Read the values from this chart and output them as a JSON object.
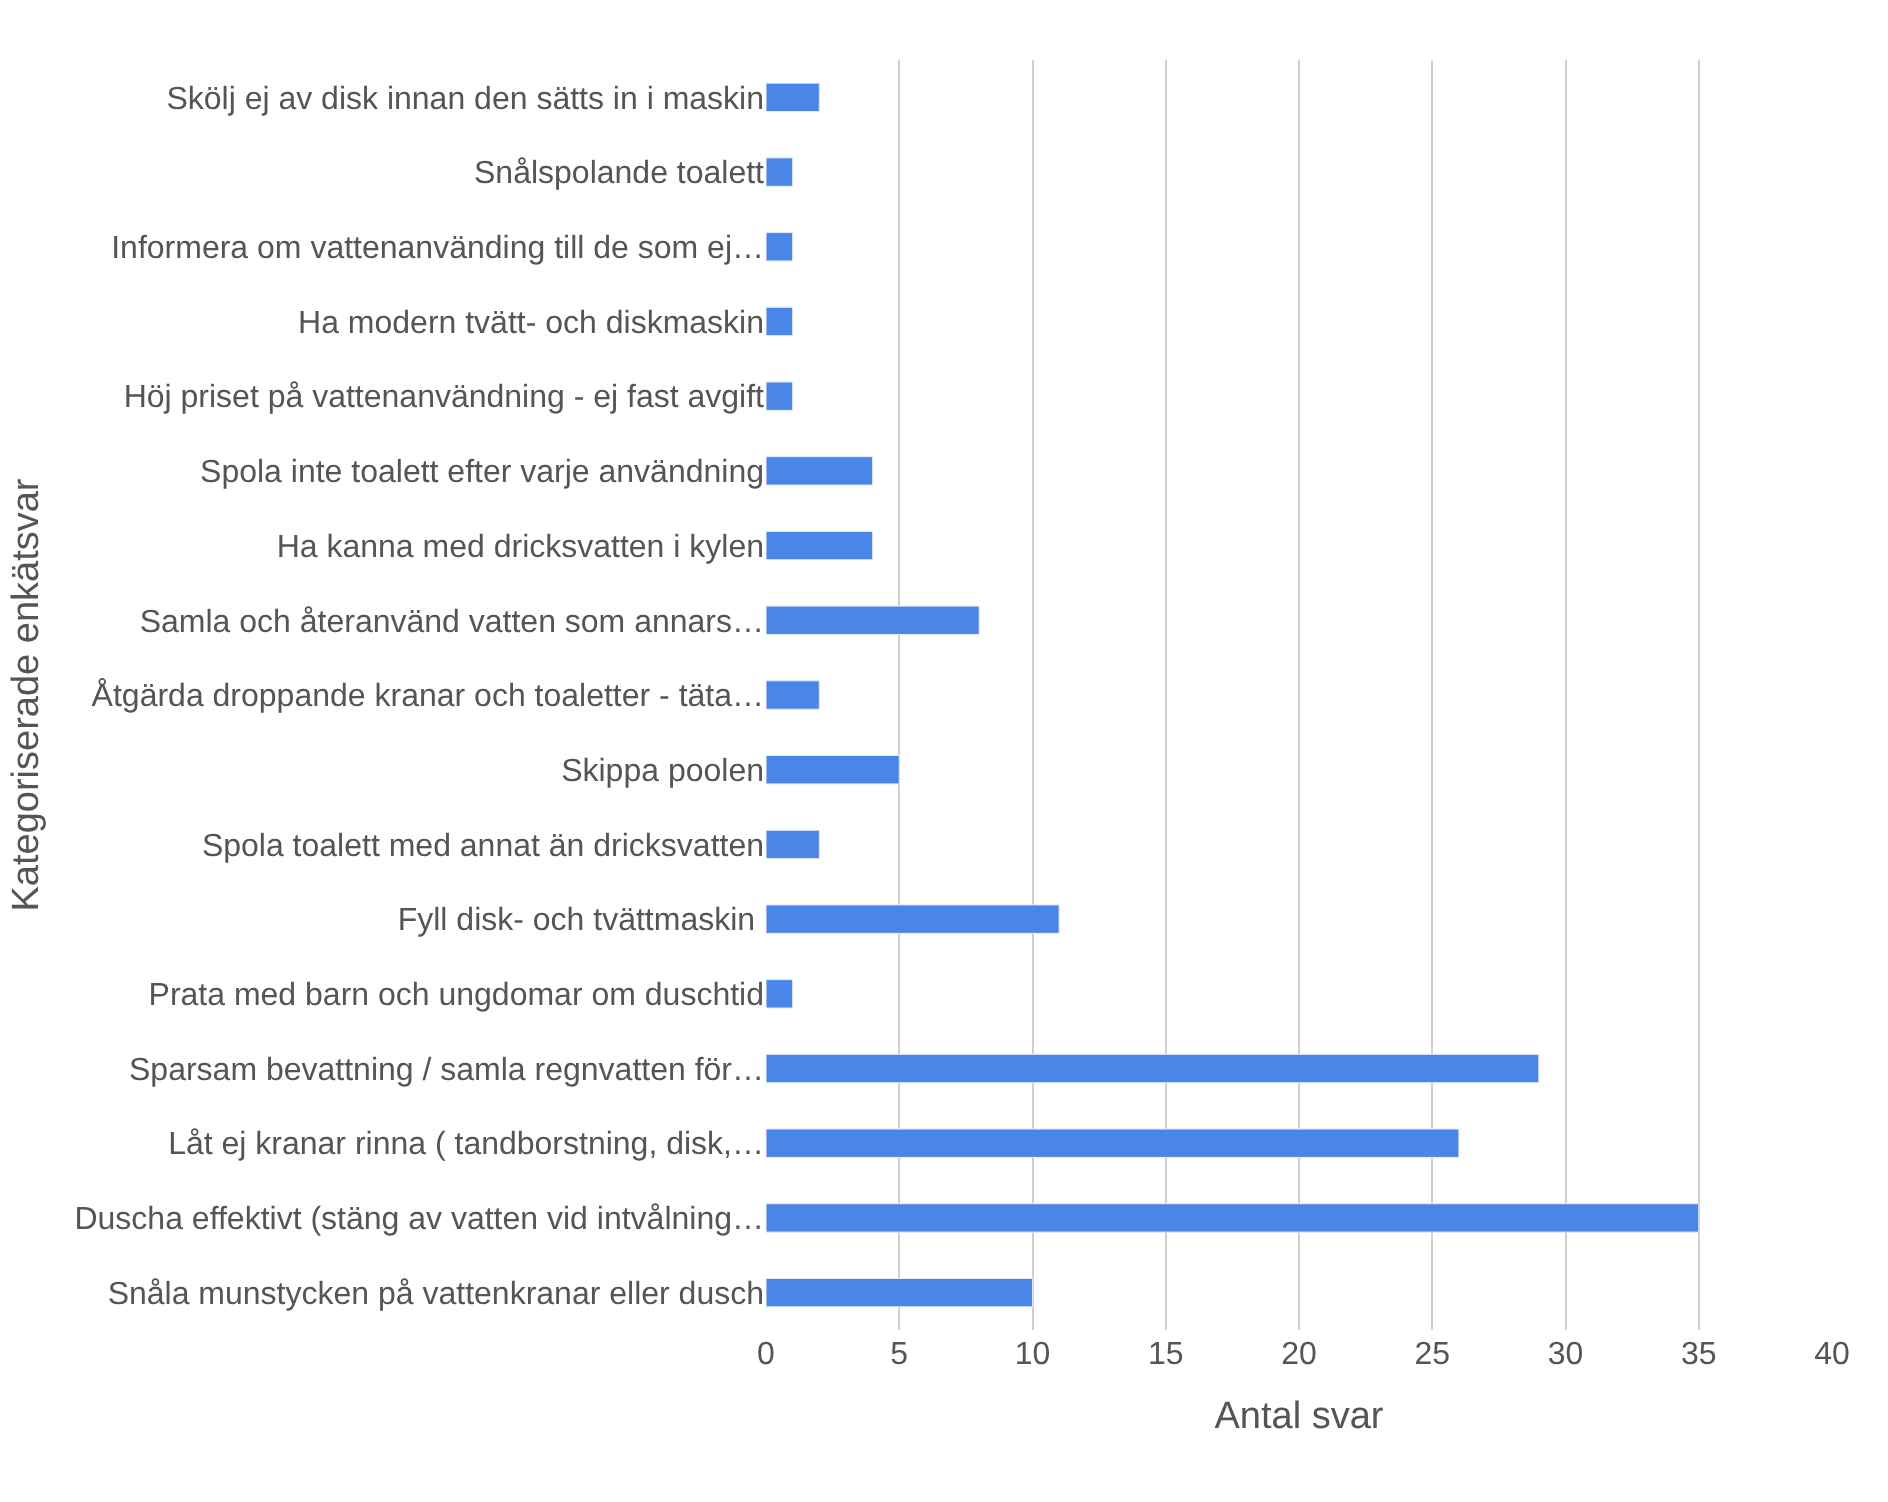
{
  "chart_data": {
    "type": "bar",
    "orientation": "horizontal",
    "xlabel": "Antal svar",
    "ylabel": "Kategoriserade enkätsvar",
    "categories": [
      "Skölj ej av disk innan den sätts in i maskin",
      "Snålspolande toalett",
      "Informera om vattenanvänding till de som ej…",
      "Ha modern tvätt- och diskmaskin",
      "Höj priset på vattenanvändning - ej fast avgift",
      "Spola inte toalett efter varje användning",
      "Ha kanna med dricksvatten i kylen",
      "Samla och återanvänd vatten som annars…",
      "Åtgärda droppande kranar och toaletter - täta…",
      "Skippa poolen",
      "Spola toalett med annat än dricksvatten",
      "Fyll disk- och tvättmaskin ",
      "Prata med barn och ungdomar om duschtid",
      "Sparsam bevattning / samla regnvatten för…",
      "Låt ej kranar rinna ( tandborstning, disk,…",
      "Duscha effektivt (stäng av vatten vid intvålning…",
      "Snåla munstycken på vattenkranar eller dusch"
    ],
    "values": [
      2,
      1,
      1,
      1,
      1,
      4,
      4,
      8,
      2,
      5,
      2,
      11,
      1,
      29,
      26,
      35,
      10
    ],
    "color": "#4a86e8",
    "xlim": [
      0,
      40
    ],
    "xticks": [
      0,
      5,
      10,
      15,
      20,
      25,
      30,
      35,
      40
    ],
    "grid": "x",
    "legend": false
  }
}
